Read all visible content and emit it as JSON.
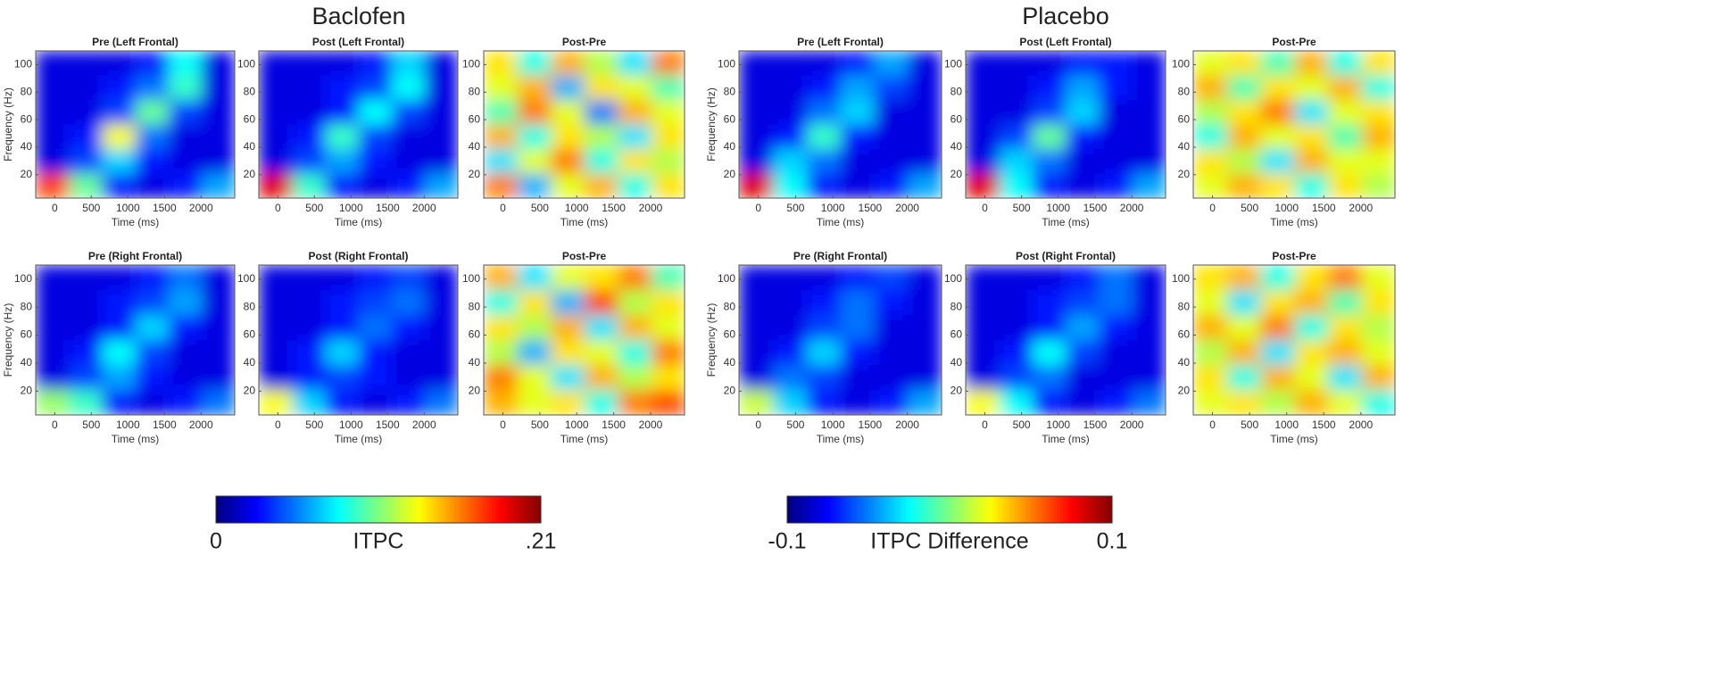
{
  "figure": {
    "titles": [
      "Baclofen",
      "Placebo"
    ]
  },
  "chart_data": [
    {
      "type": "heatmap",
      "title": "Pre (Left Frontal)",
      "xlabel": "Time (ms)",
      "ylabel": "Frequency (Hz)",
      "xlim": [
        -260,
        2460
      ],
      "ylim": [
        3,
        110
      ],
      "xticks": [
        0,
        500,
        1000,
        1500,
        2000
      ],
      "yticks": [
        20,
        40,
        60,
        80,
        100
      ],
      "colormap": "jet",
      "zlim": [
        0,
        0.21
      ],
      "values": [
        [
          0.02,
          0.02,
          0.02,
          0.03,
          0.08,
          0.02
        ],
        [
          0.02,
          0.02,
          0.03,
          0.05,
          0.09,
          0.02
        ],
        [
          0.02,
          0.02,
          0.04,
          0.1,
          0.04,
          0.02
        ],
        [
          0.02,
          0.03,
          0.13,
          0.05,
          0.02,
          0.02
        ],
        [
          0.02,
          0.04,
          0.07,
          0.03,
          0.02,
          0.02
        ],
        [
          0.17,
          0.1,
          0.03,
          0.02,
          0.03,
          0.06
        ]
      ]
    },
    {
      "type": "heatmap",
      "title": "Post (Left Frontal)",
      "xlabel": "Time (ms)",
      "xlim": [
        -260,
        2460
      ],
      "ylim": [
        3,
        110
      ],
      "xticks": [
        0,
        500,
        1000,
        1500,
        2000
      ],
      "yticks": [
        20,
        40,
        60,
        80,
        100
      ],
      "colormap": "jet",
      "zlim": [
        0,
        0.21
      ],
      "values": [
        [
          0.02,
          0.02,
          0.02,
          0.03,
          0.07,
          0.02
        ],
        [
          0.02,
          0.02,
          0.03,
          0.04,
          0.08,
          0.02
        ],
        [
          0.02,
          0.02,
          0.03,
          0.08,
          0.04,
          0.02
        ],
        [
          0.02,
          0.03,
          0.09,
          0.04,
          0.02,
          0.02
        ],
        [
          0.02,
          0.04,
          0.06,
          0.03,
          0.02,
          0.02
        ],
        [
          0.19,
          0.09,
          0.03,
          0.02,
          0.03,
          0.06
        ]
      ]
    },
    {
      "type": "heatmap",
      "title": "Post-Pre",
      "xlabel": "Time (ms)",
      "xlim": [
        -260,
        2460
      ],
      "ylim": [
        3,
        110
      ],
      "xticks": [
        0,
        500,
        1000,
        1500,
        2000
      ],
      "yticks": [
        20,
        40,
        60,
        80,
        100
      ],
      "colormap": "jet",
      "zlim": [
        -0.1,
        0.1
      ],
      "values": [
        [
          0.03,
          -0.02,
          0.04,
          0.01,
          -0.03,
          0.05
        ],
        [
          0.02,
          0.04,
          -0.04,
          0.03,
          0.02,
          -0.01
        ],
        [
          -0.01,
          0.05,
          0.02,
          -0.05,
          0.04,
          0.02
        ],
        [
          0.04,
          -0.02,
          0.03,
          0.01,
          -0.03,
          0.03
        ],
        [
          -0.03,
          0.02,
          0.05,
          -0.02,
          0.03,
          0.01
        ],
        [
          0.05,
          -0.04,
          0.02,
          0.04,
          -0.02,
          0.03
        ]
      ]
    },
    {
      "type": "heatmap",
      "title": "Pre (Left Frontal)",
      "xlabel": "Time (ms)",
      "ylabel": "Frequency (Hz)",
      "xlim": [
        -260,
        2460
      ],
      "ylim": [
        3,
        110
      ],
      "xticks": [
        0,
        500,
        1000,
        1500,
        2000
      ],
      "yticks": [
        20,
        40,
        60,
        80,
        100
      ],
      "colormap": "jet",
      "zlim": [
        0,
        0.21
      ],
      "values": [
        [
          0.02,
          0.02,
          0.02,
          0.03,
          0.06,
          0.02
        ],
        [
          0.02,
          0.02,
          0.03,
          0.06,
          0.04,
          0.02
        ],
        [
          0.02,
          0.02,
          0.05,
          0.07,
          0.02,
          0.02
        ],
        [
          0.02,
          0.03,
          0.09,
          0.03,
          0.02,
          0.02
        ],
        [
          0.02,
          0.07,
          0.05,
          0.02,
          0.02,
          0.02
        ],
        [
          0.19,
          0.08,
          0.03,
          0.02,
          0.03,
          0.06
        ]
      ]
    },
    {
      "type": "heatmap",
      "title": "Post (Left Frontal)",
      "xlabel": "Time (ms)",
      "xlim": [
        -260,
        2460
      ],
      "ylim": [
        3,
        110
      ],
      "xticks": [
        0,
        500,
        1000,
        1500,
        2000
      ],
      "yticks": [
        20,
        40,
        60,
        80,
        100
      ],
      "colormap": "jet",
      "zlim": [
        0,
        0.21
      ],
      "values": [
        [
          0.02,
          0.02,
          0.02,
          0.03,
          0.03,
          0.02
        ],
        [
          0.02,
          0.02,
          0.03,
          0.06,
          0.03,
          0.02
        ],
        [
          0.02,
          0.02,
          0.04,
          0.07,
          0.02,
          0.02
        ],
        [
          0.02,
          0.04,
          0.1,
          0.03,
          0.02,
          0.02
        ],
        [
          0.02,
          0.07,
          0.05,
          0.02,
          0.02,
          0.02
        ],
        [
          0.19,
          0.08,
          0.03,
          0.02,
          0.03,
          0.06
        ]
      ]
    },
    {
      "type": "heatmap",
      "title": "Post-Pre",
      "xlabel": "Time (ms)",
      "xlim": [
        -260,
        2460
      ],
      "ylim": [
        3,
        110
      ],
      "xticks": [
        0,
        500,
        1000,
        1500,
        2000
      ],
      "yticks": [
        20,
        40,
        60,
        80,
        100
      ],
      "colormap": "jet",
      "zlim": [
        -0.1,
        0.1
      ],
      "values": [
        [
          0.02,
          0.03,
          -0.01,
          0.04,
          -0.02,
          0.03
        ],
        [
          0.04,
          -0.01,
          0.03,
          0.02,
          0.04,
          -0.02
        ],
        [
          0.01,
          0.03,
          0.05,
          -0.03,
          0.02,
          0.03
        ],
        [
          -0.02,
          0.04,
          0.02,
          0.03,
          -0.01,
          0.04
        ],
        [
          0.03,
          0.01,
          -0.03,
          0.04,
          0.02,
          0.02
        ],
        [
          0.02,
          0.04,
          0.03,
          -0.02,
          0.03,
          0.01
        ]
      ]
    },
    {
      "type": "heatmap",
      "title": "Pre (Right Frontal)",
      "xlabel": "Time (ms)",
      "ylabel": "Frequency (Hz)",
      "xlim": [
        -260,
        2460
      ],
      "ylim": [
        3,
        110
      ],
      "xticks": [
        0,
        500,
        1000,
        1500,
        2000
      ],
      "yticks": [
        20,
        40,
        60,
        80,
        100
      ],
      "colormap": "jet",
      "zlim": [
        0,
        0.21
      ],
      "values": [
        [
          0.02,
          0.02,
          0.02,
          0.03,
          0.05,
          0.02
        ],
        [
          0.02,
          0.02,
          0.03,
          0.04,
          0.06,
          0.02
        ],
        [
          0.02,
          0.02,
          0.03,
          0.07,
          0.03,
          0.02
        ],
        [
          0.02,
          0.03,
          0.08,
          0.04,
          0.02,
          0.02
        ],
        [
          0.02,
          0.04,
          0.06,
          0.03,
          0.02,
          0.02
        ],
        [
          0.11,
          0.09,
          0.03,
          0.02,
          0.03,
          0.05
        ]
      ]
    },
    {
      "type": "heatmap",
      "title": "Post (Right Frontal)",
      "xlabel": "Time (ms)",
      "xlim": [
        -260,
        2460
      ],
      "ylim": [
        3,
        110
      ],
      "xticks": [
        0,
        500,
        1000,
        1500,
        2000
      ],
      "yticks": [
        20,
        40,
        60,
        80,
        100
      ],
      "colormap": "jet",
      "zlim": [
        0,
        0.21
      ],
      "values": [
        [
          0.02,
          0.02,
          0.02,
          0.03,
          0.04,
          0.02
        ],
        [
          0.02,
          0.02,
          0.03,
          0.04,
          0.05,
          0.02
        ],
        [
          0.02,
          0.02,
          0.03,
          0.05,
          0.03,
          0.02
        ],
        [
          0.02,
          0.03,
          0.07,
          0.03,
          0.02,
          0.02
        ],
        [
          0.02,
          0.03,
          0.04,
          0.03,
          0.02,
          0.02
        ],
        [
          0.13,
          0.07,
          0.03,
          0.02,
          0.03,
          0.05
        ]
      ]
    },
    {
      "type": "heatmap",
      "title": "Post-Pre",
      "xlabel": "Time (ms)",
      "xlim": [
        -260,
        2460
      ],
      "ylim": [
        3,
        110
      ],
      "xticks": [
        0,
        500,
        1000,
        1500,
        2000
      ],
      "yticks": [
        20,
        40,
        60,
        80,
        100
      ],
      "colormap": "jet",
      "zlim": [
        -0.1,
        0.1
      ],
      "values": [
        [
          0.04,
          -0.03,
          0.02,
          0.03,
          0.05,
          -0.01
        ],
        [
          -0.02,
          0.03,
          -0.04,
          0.06,
          0.01,
          0.03
        ],
        [
          0.03,
          0.01,
          0.04,
          -0.03,
          0.04,
          0.02
        ],
        [
          0.01,
          -0.04,
          0.03,
          0.02,
          -0.02,
          0.05
        ],
        [
          0.05,
          0.02,
          -0.03,
          0.04,
          0.01,
          0.03
        ],
        [
          0.04,
          0.02,
          0.03,
          -0.02,
          0.05,
          0.06
        ]
      ]
    },
    {
      "type": "heatmap",
      "title": "Pre (Right Frontal)",
      "xlabel": "Time (ms)",
      "ylabel": "Frequency (Hz)",
      "xlim": [
        -260,
        2460
      ],
      "ylim": [
        3,
        110
      ],
      "xticks": [
        0,
        500,
        1000,
        1500,
        2000
      ],
      "yticks": [
        20,
        40,
        60,
        80,
        100
      ],
      "colormap": "jet",
      "zlim": [
        0,
        0.21
      ],
      "values": [
        [
          0.02,
          0.02,
          0.02,
          0.03,
          0.04,
          0.02
        ],
        [
          0.02,
          0.02,
          0.03,
          0.05,
          0.03,
          0.02
        ],
        [
          0.02,
          0.02,
          0.04,
          0.05,
          0.02,
          0.02
        ],
        [
          0.02,
          0.03,
          0.07,
          0.03,
          0.02,
          0.02
        ],
        [
          0.02,
          0.05,
          0.04,
          0.02,
          0.02,
          0.02
        ],
        [
          0.12,
          0.07,
          0.03,
          0.02,
          0.03,
          0.06
        ]
      ]
    },
    {
      "type": "heatmap",
      "title": "Post (Right Frontal)",
      "xlabel": "Time (ms)",
      "xlim": [
        -260,
        2460
      ],
      "ylim": [
        3,
        110
      ],
      "xticks": [
        0,
        500,
        1000,
        1500,
        2000
      ],
      "yticks": [
        20,
        40,
        60,
        80,
        100
      ],
      "colormap": "jet",
      "zlim": [
        0,
        0.21
      ],
      "values": [
        [
          0.02,
          0.02,
          0.02,
          0.03,
          0.05,
          0.02
        ],
        [
          0.02,
          0.02,
          0.03,
          0.04,
          0.05,
          0.02
        ],
        [
          0.02,
          0.02,
          0.03,
          0.06,
          0.03,
          0.02
        ],
        [
          0.02,
          0.03,
          0.08,
          0.04,
          0.02,
          0.02
        ],
        [
          0.02,
          0.04,
          0.05,
          0.02,
          0.02,
          0.02
        ],
        [
          0.13,
          0.08,
          0.03,
          0.02,
          0.03,
          0.05
        ]
      ]
    },
    {
      "type": "heatmap",
      "title": "Post-Pre",
      "xlabel": "Time (ms)",
      "xlim": [
        -260,
        2460
      ],
      "ylim": [
        3,
        110
      ],
      "xticks": [
        0,
        500,
        1000,
        1500,
        2000
      ],
      "yticks": [
        20,
        40,
        60,
        80,
        100
      ],
      "colormap": "jet",
      "zlim": [
        -0.1,
        0.1
      ],
      "values": [
        [
          0.03,
          0.04,
          -0.02,
          0.03,
          0.05,
          0.02
        ],
        [
          0.02,
          -0.03,
          0.03,
          0.04,
          -0.01,
          0.03
        ],
        [
          0.04,
          0.02,
          0.05,
          -0.02,
          0.03,
          0.01
        ],
        [
          0.01,
          0.04,
          -0.03,
          0.03,
          0.04,
          0.02
        ],
        [
          0.03,
          -0.02,
          0.04,
          0.02,
          -0.03,
          0.04
        ],
        [
          0.02,
          0.03,
          0.01,
          0.04,
          0.02,
          -0.02
        ]
      ]
    },
    {
      "type": "colorbar",
      "label": "ITPC",
      "colormap": "jet",
      "zlim": [
        0,
        0.21
      ],
      "ticks": [
        0,
        {
          "value": 0.21,
          "label": ".21"
        }
      ]
    },
    {
      "type": "colorbar",
      "label": "ITPC Difference",
      "colormap": "jet",
      "zlim": [
        -0.1,
        0.1
      ],
      "ticks": [
        -0.1,
        0.1
      ]
    }
  ]
}
